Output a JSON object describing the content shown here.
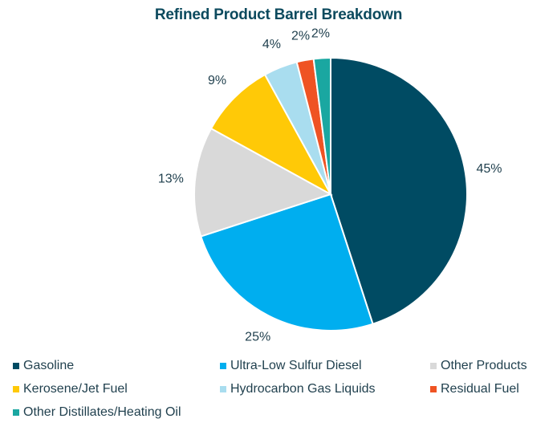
{
  "chart_data": {
    "type": "pie",
    "title": "Refined Product Barrel Breakdown",
    "slices": [
      {
        "label": "Gasoline",
        "value": 45,
        "display": "45%",
        "color": "#004b63"
      },
      {
        "label": "Ultra-Low Sulfur Diesel",
        "value": 25,
        "display": "25%",
        "color": "#00aeef"
      },
      {
        "label": "Other Products",
        "value": 13,
        "display": "13%",
        "color": "#d9d9d9"
      },
      {
        "label": "Kerosene/Jet Fuel",
        "value": 9,
        "display": "9%",
        "color": "#ffc907"
      },
      {
        "label": "Hydrocarbon Gas Liquids",
        "value": 4,
        "display": "4%",
        "color": "#a9ddef"
      },
      {
        "label": "Residual Fuel",
        "value": 2,
        "display": "2%",
        "color": "#ef5323"
      },
      {
        "label": "Other Distillates/Heating Oil",
        "value": 2,
        "display": "2%",
        "color": "#1aa7a1"
      }
    ],
    "legend_position": "bottom"
  }
}
